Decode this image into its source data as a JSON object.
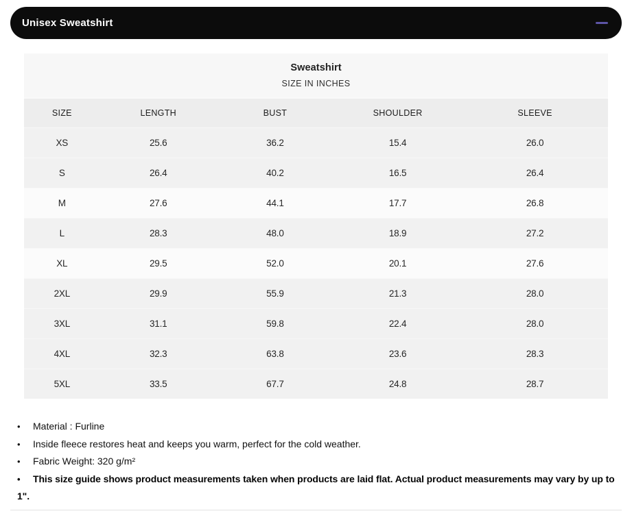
{
  "header": {
    "title": "Unisex Sweatshirt",
    "colors": {
      "bar_bg": "#0c0c0c",
      "title_text": "#ffffff",
      "collapse_accent": "#5d55a6"
    }
  },
  "size_chart": {
    "title": "Sweatshirt",
    "subtitle": "SIZE IN INCHES",
    "columns": [
      "SIZE",
      "LENGTH",
      "BUST",
      "SHOULDER",
      "SLEEVE"
    ],
    "rows": [
      {
        "cells": [
          "XS",
          "25.6",
          "36.2",
          "15.4",
          "26.0"
        ],
        "highlighted": false
      },
      {
        "cells": [
          "S",
          "26.4",
          "40.2",
          "16.5",
          "26.4"
        ],
        "highlighted": false
      },
      {
        "cells": [
          "M",
          "27.6",
          "44.1",
          "17.7",
          "26.8"
        ],
        "highlighted": true
      },
      {
        "cells": [
          "L",
          "28.3",
          "48.0",
          "18.9",
          "27.2"
        ],
        "highlighted": false
      },
      {
        "cells": [
          "XL",
          "29.5",
          "52.0",
          "20.1",
          "27.6"
        ],
        "highlighted": true
      },
      {
        "cells": [
          "2XL",
          "29.9",
          "55.9",
          "21.3",
          "28.0"
        ],
        "highlighted": false
      },
      {
        "cells": [
          "3XL",
          "31.1",
          "59.8",
          "22.4",
          "28.0"
        ],
        "highlighted": false
      },
      {
        "cells": [
          "4XL",
          "32.3",
          "63.8",
          "23.6",
          "28.3"
        ],
        "highlighted": false
      },
      {
        "cells": [
          "5XL",
          "33.5",
          "67.7",
          "24.8",
          "28.7"
        ],
        "highlighted": false
      }
    ]
  },
  "notes": {
    "bullet": "•",
    "items": [
      {
        "text": "Material : Furline",
        "emphasis": false
      },
      {
        "text": "Inside fleece restores heat and keeps you warm, perfect for the cold weather.",
        "emphasis": false
      },
      {
        "text": "Fabric Weight: 320 g/m²",
        "emphasis": false
      },
      {
        "text": "This size guide shows product measurements taken when products are laid flat. Actual product measurements may vary by up to 1\".",
        "emphasis": true
      }
    ]
  }
}
